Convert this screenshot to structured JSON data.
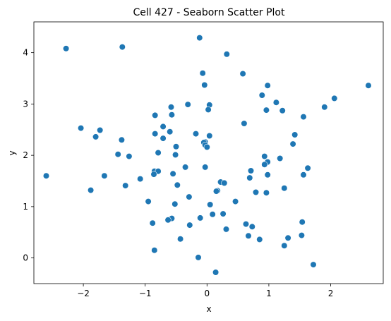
{
  "chart_data": {
    "type": "scatter",
    "title": "Cell 427 - Seaborn Scatter Plot",
    "xlabel": "x",
    "ylabel": "y",
    "xlim": [
      -2.8,
      2.85
    ],
    "ylim": [
      -0.5,
      4.6
    ],
    "xticks": [
      -2,
      -1,
      0,
      1,
      2
    ],
    "yticks": [
      0,
      1,
      2,
      3,
      4
    ],
    "xtick_labels": [
      "−2",
      "−1",
      "0",
      "1",
      "2"
    ],
    "ytick_labels": [
      "0",
      "1",
      "2",
      "3",
      "4"
    ],
    "grid": false,
    "legend": false,
    "marker_color": "#1f77b4",
    "marker_edge_color": "#ffffff",
    "points": [
      [
        -2.28,
        4.08
      ],
      [
        -1.37,
        4.11
      ],
      [
        -0.12,
        4.29
      ],
      [
        0.32,
        3.97
      ],
      [
        -0.07,
        3.6
      ],
      [
        0.58,
        3.59
      ],
      [
        -0.04,
        3.37
      ],
      [
        0.98,
        3.36
      ],
      [
        2.61,
        3.36
      ],
      [
        2.06,
        3.11
      ],
      [
        0.89,
        3.17
      ],
      [
        1.12,
        3.03
      ],
      [
        -0.31,
        2.99
      ],
      [
        0.04,
        2.98
      ],
      [
        1.9,
        2.94
      ],
      [
        -0.58,
        2.94
      ],
      [
        0.02,
        2.89
      ],
      [
        0.96,
        2.88
      ],
      [
        1.22,
        2.87
      ],
      [
        -0.57,
        2.79
      ],
      [
        -0.84,
        2.78
      ],
      [
        1.56,
        2.75
      ],
      [
        0.6,
        2.62
      ],
      [
        -0.71,
        2.56
      ],
      [
        -2.04,
        2.53
      ],
      [
        -1.73,
        2.49
      ],
      [
        -0.6,
        2.46
      ],
      [
        -0.84,
        2.42
      ],
      [
        -0.18,
        2.42
      ],
      [
        1.42,
        2.4
      ],
      [
        0.04,
        2.38
      ],
      [
        -1.8,
        2.36
      ],
      [
        -0.71,
        2.33
      ],
      [
        -1.38,
        2.3
      ],
      [
        -0.03,
        2.26
      ],
      [
        -0.05,
        2.25
      ],
      [
        1.39,
        2.22
      ],
      [
        -0.03,
        2.2
      ],
      [
        0.0,
        2.16
      ],
      [
        -0.5,
        2.17
      ],
      [
        -0.79,
        2.05
      ],
      [
        -1.44,
        2.02
      ],
      [
        -0.51,
        2.01
      ],
      [
        -1.26,
        1.98
      ],
      [
        0.93,
        1.98
      ],
      [
        1.18,
        1.94
      ],
      [
        0.98,
        1.87
      ],
      [
        0.93,
        1.82
      ],
      [
        -0.35,
        1.77
      ],
      [
        -0.03,
        1.77
      ],
      [
        1.63,
        1.75
      ],
      [
        0.71,
        1.7
      ],
      [
        -0.85,
        1.69
      ],
      [
        -0.79,
        1.69
      ],
      [
        -0.86,
        1.63
      ],
      [
        -0.55,
        1.64
      ],
      [
        0.98,
        1.62
      ],
      [
        1.56,
        1.62
      ],
      [
        -1.66,
        1.6
      ],
      [
        -2.6,
        1.6
      ],
      [
        0.69,
        1.56
      ],
      [
        -1.08,
        1.54
      ],
      [
        0.22,
        1.48
      ],
      [
        0.28,
        1.46
      ],
      [
        -0.48,
        1.42
      ],
      [
        -1.32,
        1.41
      ],
      [
        1.25,
        1.36
      ],
      [
        -1.88,
        1.32
      ],
      [
        0.17,
        1.31
      ],
      [
        0.15,
        1.3
      ],
      [
        0.79,
        1.28
      ],
      [
        0.96,
        1.27
      ],
      [
        -0.29,
        1.19
      ],
      [
        -0.95,
        1.1
      ],
      [
        0.46,
        1.1
      ],
      [
        -0.52,
        1.05
      ],
      [
        0.05,
        1.04
      ],
      [
        0.26,
        0.86
      ],
      [
        0.09,
        0.85
      ],
      [
        -0.11,
        0.78
      ],
      [
        -0.57,
        0.77
      ],
      [
        -0.63,
        0.74
      ],
      [
        1.54,
        0.7
      ],
      [
        -0.88,
        0.68
      ],
      [
        0.63,
        0.66
      ],
      [
        -0.28,
        0.64
      ],
      [
        0.73,
        0.61
      ],
      [
        0.31,
        0.56
      ],
      [
        0.67,
        0.43
      ],
      [
        1.53,
        0.44
      ],
      [
        1.31,
        0.39
      ],
      [
        -0.43,
        0.37
      ],
      [
        0.85,
        0.36
      ],
      [
        1.25,
        0.24
      ],
      [
        -0.85,
        0.15
      ],
      [
        -0.14,
        0.01
      ],
      [
        1.72,
        -0.13
      ],
      [
        0.14,
        -0.28
      ]
    ]
  }
}
